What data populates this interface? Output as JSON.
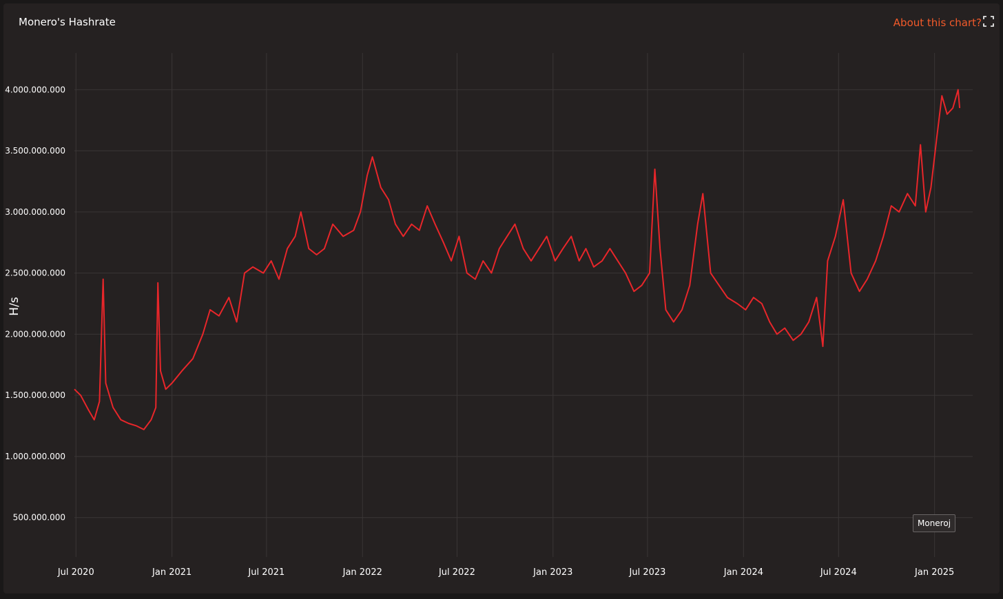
{
  "header": {
    "title": "Monero's Hashrate",
    "about_label": "About this chart?",
    "expand_icon": "expand-icon"
  },
  "credit": "Moneroj",
  "colors": {
    "line": "#e8262a",
    "accent": "#f25a2a",
    "grid": "#3a3636",
    "background": "#252121"
  },
  "chart_data": {
    "type": "line",
    "title": "Monero's Hashrate",
    "xlabel": "",
    "ylabel": "H/s",
    "ylim": [
      200000000,
      4300000000
    ],
    "xlim": [
      "2020-06-28",
      "2025-03-15"
    ],
    "y_ticks": [
      500000000,
      1000000000,
      1500000000,
      2000000000,
      2500000000,
      3000000000,
      3500000000,
      4000000000
    ],
    "y_tick_labels": [
      "500.000.000",
      "1.000.000.000",
      "1.500.000.000",
      "2.000.000.000",
      "2.500.000.000",
      "3.000.000.000",
      "3.500.000.000",
      "4.000.000.000"
    ],
    "x_ticks": [
      "2020-07-01",
      "2021-01-01",
      "2021-07-01",
      "2022-01-01",
      "2022-07-01",
      "2023-01-01",
      "2023-07-01",
      "2024-01-01",
      "2024-07-01",
      "2025-01-01"
    ],
    "x_tick_labels": [
      "Jul 2020",
      "Jan 2021",
      "Jul 2021",
      "Jan 2022",
      "Jul 2022",
      "Jan 2023",
      "Jul 2023",
      "Jan 2024",
      "Jul 2024",
      "Jan 2025"
    ],
    "grid": true,
    "legend": "none",
    "series": [
      {
        "points": [
          [
            "2020-06-28",
            1550000000
          ],
          [
            "2020-07-10",
            1500000000
          ],
          [
            "2020-07-25",
            1380000000
          ],
          [
            "2020-08-05",
            1300000000
          ],
          [
            "2020-08-15",
            1450000000
          ],
          [
            "2020-08-22",
            2450000000
          ],
          [
            "2020-08-27",
            1600000000
          ],
          [
            "2020-09-10",
            1400000000
          ],
          [
            "2020-09-25",
            1300000000
          ],
          [
            "2020-10-10",
            1270000000
          ],
          [
            "2020-10-25",
            1250000000
          ],
          [
            "2020-11-08",
            1220000000
          ],
          [
            "2020-11-22",
            1300000000
          ],
          [
            "2020-12-01",
            1400000000
          ],
          [
            "2020-12-05",
            2420000000
          ],
          [
            "2020-12-10",
            1700000000
          ],
          [
            "2020-12-20",
            1550000000
          ],
          [
            "2021-01-01",
            1600000000
          ],
          [
            "2021-01-20",
            1700000000
          ],
          [
            "2021-02-10",
            1800000000
          ],
          [
            "2021-03-01",
            2000000000
          ],
          [
            "2021-03-15",
            2200000000
          ],
          [
            "2021-04-01",
            2150000000
          ],
          [
            "2021-04-20",
            2300000000
          ],
          [
            "2021-05-05",
            2100000000
          ],
          [
            "2021-05-20",
            2500000000
          ],
          [
            "2021-06-05",
            2550000000
          ],
          [
            "2021-06-25",
            2500000000
          ],
          [
            "2021-07-10",
            2600000000
          ],
          [
            "2021-07-25",
            2450000000
          ],
          [
            "2021-08-10",
            2700000000
          ],
          [
            "2021-08-25",
            2800000000
          ],
          [
            "2021-09-05",
            3000000000
          ],
          [
            "2021-09-20",
            2700000000
          ],
          [
            "2021-10-05",
            2650000000
          ],
          [
            "2021-10-20",
            2700000000
          ],
          [
            "2021-11-05",
            2900000000
          ],
          [
            "2021-11-25",
            2800000000
          ],
          [
            "2021-12-15",
            2850000000
          ],
          [
            "2021-12-28",
            3000000000
          ],
          [
            "2022-01-10",
            3300000000
          ],
          [
            "2022-01-20",
            3450000000
          ],
          [
            "2022-02-05",
            3200000000
          ],
          [
            "2022-02-20",
            3100000000
          ],
          [
            "2022-03-05",
            2900000000
          ],
          [
            "2022-03-20",
            2800000000
          ],
          [
            "2022-04-05",
            2900000000
          ],
          [
            "2022-04-20",
            2850000000
          ],
          [
            "2022-05-05",
            3050000000
          ],
          [
            "2022-05-20",
            2900000000
          ],
          [
            "2022-06-05",
            2750000000
          ],
          [
            "2022-06-20",
            2600000000
          ],
          [
            "2022-07-05",
            2800000000
          ],
          [
            "2022-07-20",
            2500000000
          ],
          [
            "2022-08-05",
            2450000000
          ],
          [
            "2022-08-20",
            2600000000
          ],
          [
            "2022-09-05",
            2500000000
          ],
          [
            "2022-09-20",
            2700000000
          ],
          [
            "2022-10-05",
            2800000000
          ],
          [
            "2022-10-20",
            2900000000
          ],
          [
            "2022-11-05",
            2700000000
          ],
          [
            "2022-11-20",
            2600000000
          ],
          [
            "2022-12-05",
            2700000000
          ],
          [
            "2022-12-20",
            2800000000
          ],
          [
            "2023-01-05",
            2600000000
          ],
          [
            "2023-01-20",
            2700000000
          ],
          [
            "2023-02-05",
            2800000000
          ],
          [
            "2023-02-20",
            2600000000
          ],
          [
            "2023-03-05",
            2700000000
          ],
          [
            "2023-03-20",
            2550000000
          ],
          [
            "2023-04-05",
            2600000000
          ],
          [
            "2023-04-20",
            2700000000
          ],
          [
            "2023-05-05",
            2600000000
          ],
          [
            "2023-05-20",
            2500000000
          ],
          [
            "2023-06-05",
            2350000000
          ],
          [
            "2023-06-20",
            2400000000
          ],
          [
            "2023-07-05",
            2500000000
          ],
          [
            "2023-07-15",
            3350000000
          ],
          [
            "2023-07-25",
            2700000000
          ],
          [
            "2023-08-05",
            2200000000
          ],
          [
            "2023-08-20",
            2100000000
          ],
          [
            "2023-09-05",
            2200000000
          ],
          [
            "2023-09-20",
            2400000000
          ],
          [
            "2023-10-05",
            2900000000
          ],
          [
            "2023-10-15",
            3150000000
          ],
          [
            "2023-10-30",
            2500000000
          ],
          [
            "2023-11-15",
            2400000000
          ],
          [
            "2023-12-01",
            2300000000
          ],
          [
            "2023-12-20",
            2250000000
          ],
          [
            "2024-01-05",
            2200000000
          ],
          [
            "2024-01-20",
            2300000000
          ],
          [
            "2024-02-05",
            2250000000
          ],
          [
            "2024-02-20",
            2100000000
          ],
          [
            "2024-03-05",
            2000000000
          ],
          [
            "2024-03-20",
            2050000000
          ],
          [
            "2024-04-05",
            1950000000
          ],
          [
            "2024-04-20",
            2000000000
          ],
          [
            "2024-05-05",
            2100000000
          ],
          [
            "2024-05-20",
            2300000000
          ],
          [
            "2024-06-01",
            1900000000
          ],
          [
            "2024-06-10",
            2600000000
          ],
          [
            "2024-06-25",
            2800000000
          ],
          [
            "2024-07-10",
            3100000000
          ],
          [
            "2024-07-25",
            2500000000
          ],
          [
            "2024-08-10",
            2350000000
          ],
          [
            "2024-08-25",
            2450000000
          ],
          [
            "2024-09-10",
            2600000000
          ],
          [
            "2024-09-25",
            2800000000
          ],
          [
            "2024-10-10",
            3050000000
          ],
          [
            "2024-10-25",
            3000000000
          ],
          [
            "2024-11-10",
            3150000000
          ],
          [
            "2024-11-25",
            3050000000
          ],
          [
            "2024-12-05",
            3550000000
          ],
          [
            "2024-12-15",
            3000000000
          ],
          [
            "2024-12-25",
            3200000000
          ],
          [
            "2025-01-05",
            3600000000
          ],
          [
            "2025-01-15",
            3950000000
          ],
          [
            "2025-01-25",
            3800000000
          ],
          [
            "2025-02-05",
            3850000000
          ],
          [
            "2025-02-15",
            4000000000
          ],
          [
            "2025-02-18",
            3850000000
          ]
        ]
      }
    ]
  }
}
